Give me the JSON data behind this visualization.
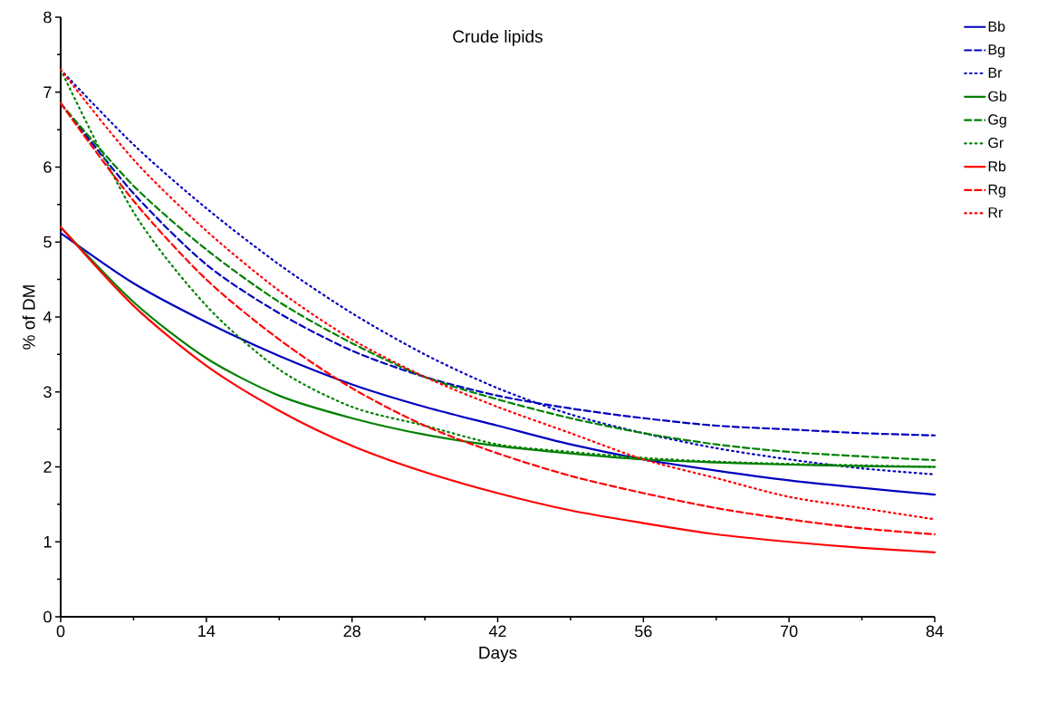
{
  "chart_data": {
    "type": "line",
    "title": "Crude lipids",
    "xlabel": "Days",
    "ylabel": "% of DM",
    "x": [
      0,
      7,
      14,
      21,
      28,
      35,
      42,
      49,
      56,
      63,
      70,
      77,
      84
    ],
    "xlim": [
      0,
      84
    ],
    "xticks": [
      0,
      14,
      28,
      42,
      56,
      70,
      84
    ],
    "ylim": [
      0,
      8
    ],
    "yticks": [
      0,
      1,
      2,
      3,
      4,
      5,
      6,
      7,
      8
    ],
    "grid": false,
    "legend": "top right",
    "marker": "none",
    "series": [
      {
        "name": "Bb",
        "color": "#0000c0",
        "line_style": "solid",
        "values": [
          5.12,
          4.45,
          3.93,
          3.48,
          3.1,
          2.8,
          2.55,
          2.3,
          2.1,
          1.95,
          1.82,
          1.72,
          1.63
        ]
      },
      {
        "name": "Bg",
        "color": "#0000c0",
        "line_style": "dashed",
        "values": [
          6.85,
          5.65,
          4.7,
          4.05,
          3.55,
          3.2,
          2.95,
          2.78,
          2.65,
          2.55,
          2.5,
          2.45,
          2.42
        ]
      },
      {
        "name": "Br",
        "color": "#0000c0",
        "line_style": "dotted",
        "values": [
          7.3,
          6.3,
          5.45,
          4.7,
          4.05,
          3.5,
          3.05,
          2.7,
          2.45,
          2.25,
          2.1,
          1.98,
          1.9
        ]
      },
      {
        "name": "Gb",
        "color": "#008000",
        "line_style": "solid",
        "values": [
          5.2,
          4.2,
          3.45,
          2.95,
          2.65,
          2.43,
          2.28,
          2.18,
          2.1,
          2.06,
          2.03,
          2.01,
          2.0
        ]
      },
      {
        "name": "Gg",
        "color": "#008000",
        "line_style": "dashed",
        "values": [
          6.85,
          5.75,
          4.9,
          4.2,
          3.65,
          3.2,
          2.9,
          2.65,
          2.45,
          2.3,
          2.2,
          2.14,
          2.09
        ]
      },
      {
        "name": "Gr",
        "color": "#008000",
        "line_style": "dotted",
        "values": [
          7.3,
          5.4,
          4.15,
          3.3,
          2.8,
          2.55,
          2.3,
          2.2,
          2.12,
          2.07,
          2.04,
          2.02,
          2.0
        ]
      },
      {
        "name": "Rb",
        "color": "#ff0000",
        "line_style": "solid",
        "values": [
          5.2,
          4.15,
          3.35,
          2.75,
          2.28,
          1.93,
          1.65,
          1.42,
          1.25,
          1.1,
          1.0,
          0.92,
          0.86
        ]
      },
      {
        "name": "Rg",
        "color": "#ff0000",
        "line_style": "dashed",
        "values": [
          6.85,
          5.55,
          4.5,
          3.7,
          3.05,
          2.55,
          2.18,
          1.88,
          1.65,
          1.45,
          1.3,
          1.18,
          1.1
        ]
      },
      {
        "name": "Rr",
        "color": "#ff0000",
        "line_style": "dotted",
        "values": [
          7.3,
          6.1,
          5.15,
          4.35,
          3.7,
          3.2,
          2.8,
          2.45,
          2.1,
          1.85,
          1.6,
          1.45,
          1.3
        ]
      }
    ]
  }
}
